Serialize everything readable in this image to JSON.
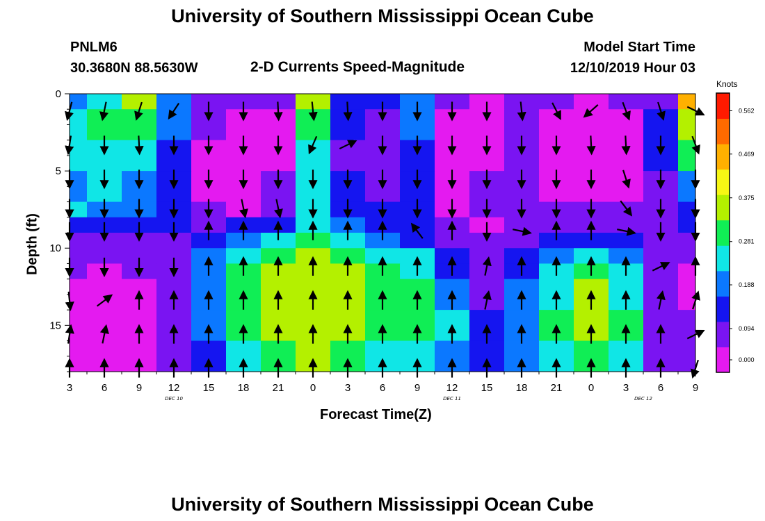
{
  "page": {
    "title": "University of Southern Mississippi Ocean Cube",
    "footer_title": "University of Southern Mississippi Ocean Cube"
  },
  "station": {
    "id": "PNLM6",
    "coords": "30.3680N 88.5630W"
  },
  "plot": {
    "title": "2-D Currents Speed-Magnitude",
    "model_start_label": "Model Start Time",
    "model_start_value": "12/10/2019 Hour 03"
  },
  "chart_data": {
    "type": "heatmap",
    "title": "2-D Currents Speed-Magnitude",
    "xlabel": "Forecast Time(Z)",
    "ylabel": "Depth (ft)",
    "x_tick_labels": [
      "3",
      "6",
      "9",
      "12",
      "15",
      "18",
      "21",
      "0",
      "3",
      "6",
      "9",
      "12",
      "15",
      "18",
      "21",
      "0",
      "3",
      "6",
      "9"
    ],
    "y_tick_labels": [
      "0",
      "5",
      "10",
      "15"
    ],
    "y_ticks": [
      0,
      5,
      10,
      15
    ],
    "ylim": [
      0,
      18
    ],
    "y_inverted": true,
    "x_hours_range": [
      3,
      57
    ],
    "day_labels": [
      {
        "label": "DEC 10",
        "hour": 12
      },
      {
        "label": "DEC 11",
        "hour": 36
      },
      {
        "label": "DEC 12",
        "hour": 52.5
      }
    ],
    "colorbar": {
      "unit": "Knots",
      "tick_labels": [
        "0.562",
        "0.469",
        "0.375",
        "0.281",
        "0.188",
        "0.094",
        "0.000"
      ],
      "ticks": [
        0.562,
        0.469,
        0.375,
        0.281,
        0.188,
        0.094,
        0.0
      ],
      "range": [
        0.0,
        0.6
      ],
      "colors": [
        "#e41af0",
        "#7a14f2",
        "#1515f0",
        "#0b78ff",
        "#10e6e6",
        "#10ee55",
        "#b4f000",
        "#f7f714",
        "#ffb000",
        "#ff6a00",
        "#ff1a00"
      ]
    },
    "speed_grid_levels": {
      "bands": [
        {
          "depth": [
            0,
            1
          ],
          "values": [
            0.2,
            0.24,
            0.34,
            0.2,
            0.09,
            0.07,
            0.1,
            0.38,
            0.12,
            0.12,
            0.2,
            0.06,
            0.04,
            0.09,
            0.06,
            0.05,
            0.06,
            0.1,
            0.45
          ]
        },
        {
          "depth": [
            1,
            3
          ],
          "values": [
            0.22,
            0.28,
            0.3,
            0.18,
            0.08,
            0.05,
            0.05,
            0.3,
            0.12,
            0.1,
            0.2,
            0.04,
            0.04,
            0.08,
            0.04,
            0.03,
            0.05,
            0.12,
            0.38
          ]
        },
        {
          "depth": [
            3,
            5
          ],
          "values": [
            0.22,
            0.24,
            0.22,
            0.16,
            0.05,
            0.04,
            0.05,
            0.25,
            0.1,
            0.08,
            0.16,
            0.03,
            0.05,
            0.07,
            0.03,
            0.02,
            0.04,
            0.13,
            0.3
          ]
        },
        {
          "depth": [
            5,
            7
          ],
          "values": [
            0.2,
            0.22,
            0.18,
            0.16,
            0.05,
            0.03,
            0.06,
            0.22,
            0.12,
            0.1,
            0.14,
            0.04,
            0.06,
            0.06,
            0.04,
            0.03,
            0.05,
            0.1,
            0.18
          ]
        },
        {
          "depth": [
            7,
            8
          ],
          "values": [
            0.22,
            0.2,
            0.18,
            0.16,
            0.06,
            0.04,
            0.08,
            0.25,
            0.14,
            0.12,
            0.12,
            0.05,
            0.06,
            0.07,
            0.06,
            0.06,
            0.08,
            0.09,
            0.15
          ]
        },
        {
          "depth": [
            8,
            9
          ],
          "values": [
            0.14,
            0.12,
            0.14,
            0.14,
            0.1,
            0.12,
            0.14,
            0.26,
            0.18,
            0.14,
            0.14,
            0.08,
            0.05,
            0.06,
            0.08,
            0.1,
            0.1,
            0.1,
            0.12
          ]
        },
        {
          "depth": [
            9,
            10
          ],
          "values": [
            0.1,
            0.1,
            0.1,
            0.1,
            0.14,
            0.2,
            0.25,
            0.32,
            0.24,
            0.18,
            0.16,
            0.1,
            0.06,
            0.1,
            0.14,
            0.15,
            0.14,
            0.1,
            0.08
          ]
        },
        {
          "depth": [
            10,
            11
          ],
          "values": [
            0.06,
            0.06,
            0.07,
            0.08,
            0.18,
            0.26,
            0.32,
            0.36,
            0.3,
            0.24,
            0.22,
            0.12,
            0.06,
            0.14,
            0.2,
            0.24,
            0.2,
            0.1,
            0.06
          ]
        },
        {
          "depth": [
            11,
            12
          ],
          "values": [
            0.06,
            0.05,
            0.06,
            0.07,
            0.2,
            0.28,
            0.34,
            0.38,
            0.34,
            0.28,
            0.26,
            0.16,
            0.08,
            0.16,
            0.24,
            0.3,
            0.24,
            0.09,
            0.05
          ]
        },
        {
          "depth": [
            12,
            14
          ],
          "values": [
            0.03,
            0.02,
            0.03,
            0.06,
            0.2,
            0.3,
            0.36,
            0.38,
            0.36,
            0.3,
            0.3,
            0.2,
            0.1,
            0.18,
            0.26,
            0.34,
            0.26,
            0.09,
            0.05
          ]
        },
        {
          "depth": [
            14,
            16
          ],
          "values": [
            0.02,
            0.02,
            0.02,
            0.06,
            0.18,
            0.3,
            0.36,
            0.38,
            0.36,
            0.3,
            0.3,
            0.22,
            0.12,
            0.2,
            0.28,
            0.36,
            0.28,
            0.1,
            0.06
          ]
        },
        {
          "depth": [
            16,
            18
          ],
          "values": [
            0.02,
            0.02,
            0.03,
            0.06,
            0.16,
            0.22,
            0.3,
            0.34,
            0.3,
            0.24,
            0.26,
            0.18,
            0.14,
            0.2,
            0.26,
            0.32,
            0.24,
            0.1,
            0.06
          ]
        }
      ]
    },
    "vector_rows": [
      {
        "depth": 1.1,
        "dir": [
          [
            -0.25,
            0.97
          ],
          [
            -0.2,
            0.98
          ],
          [
            -0.3,
            0.95
          ],
          [
            -0.55,
            0.83
          ],
          [
            0,
            1
          ],
          [
            0,
            1
          ],
          [
            0.05,
            1
          ],
          [
            0.1,
            1
          ],
          [
            0.05,
            1
          ],
          [
            0,
            1
          ],
          [
            0,
            1
          ],
          [
            0,
            1
          ],
          [
            0,
            1
          ],
          [
            0.1,
            1
          ],
          [
            0.45,
            0.89
          ],
          [
            -0.75,
            0.66
          ],
          [
            0.35,
            0.94
          ],
          [
            0.3,
            0.95
          ],
          [
            0.9,
            0.44
          ]
        ]
      },
      {
        "depth": 3.3,
        "dir": [
          [
            -0.15,
            0.99
          ],
          [
            0,
            1
          ],
          [
            0.05,
            1
          ],
          [
            0,
            1
          ],
          [
            0,
            1
          ],
          [
            0,
            1
          ],
          [
            0,
            1
          ],
          [
            -0.4,
            0.92
          ],
          [
            0.9,
            -0.44
          ],
          [
            0,
            1
          ],
          [
            0,
            1
          ],
          [
            0,
            1
          ],
          [
            0,
            1
          ],
          [
            0,
            1
          ],
          [
            0,
            1
          ],
          [
            0.05,
            1
          ],
          [
            0.05,
            1
          ],
          [
            0,
            1
          ],
          [
            0.35,
            0.94
          ]
        ]
      },
      {
        "depth": 5.5,
        "dir": [
          [
            0,
            1
          ],
          [
            0,
            1
          ],
          [
            0,
            1
          ],
          [
            0,
            1
          ],
          [
            0,
            1
          ],
          [
            0,
            1
          ],
          [
            0,
            1
          ],
          [
            0,
            1
          ],
          [
            0,
            1
          ],
          [
            0,
            1
          ],
          [
            0,
            1
          ],
          [
            0,
            1
          ],
          [
            0,
            1
          ],
          [
            0,
            1
          ],
          [
            0,
            1
          ],
          [
            0,
            1
          ],
          [
            0.3,
            0.95
          ],
          [
            0,
            1
          ],
          [
            0,
            1
          ]
        ]
      },
      {
        "depth": 7.4,
        "dir": [
          [
            0,
            1
          ],
          [
            0,
            1
          ],
          [
            0,
            1
          ],
          [
            0,
            1
          ],
          [
            0,
            1
          ],
          [
            0.2,
            0.98
          ],
          [
            0.2,
            0.98
          ],
          [
            0,
            1
          ],
          [
            0,
            1
          ],
          [
            0,
            1
          ],
          [
            0,
            1
          ],
          [
            0,
            1
          ],
          [
            0,
            1
          ],
          [
            0,
            1
          ],
          [
            0,
            1
          ],
          [
            0,
            1
          ],
          [
            0.6,
            0.8
          ],
          [
            0,
            1
          ],
          [
            0,
            1
          ]
        ]
      },
      {
        "depth": 8.9,
        "dir": [
          [
            0,
            1
          ],
          [
            0,
            1
          ],
          [
            0,
            1
          ],
          [
            0,
            1
          ],
          [
            0,
            -1
          ],
          [
            0,
            -1
          ],
          [
            0,
            -1
          ],
          [
            0,
            -1
          ],
          [
            0,
            -1
          ],
          [
            0,
            -1
          ],
          [
            -0.6,
            -0.8
          ],
          [
            0,
            -1
          ],
          [
            0,
            1
          ],
          [
            0.98,
            0.2
          ],
          [
            0,
            -1
          ],
          [
            0,
            -1
          ],
          [
            0.98,
            0.2
          ],
          [
            0,
            1
          ],
          [
            0,
            1
          ]
        ]
      },
      {
        "depth": 11.2,
        "dir": [
          [
            0,
            1
          ],
          [
            0,
            1
          ],
          [
            0,
            1
          ],
          [
            0,
            1
          ],
          [
            0,
            -1
          ],
          [
            0,
            -1
          ],
          [
            0,
            -1
          ],
          [
            0,
            -1
          ],
          [
            0,
            -1
          ],
          [
            0,
            -1
          ],
          [
            0,
            -1
          ],
          [
            0,
            -1
          ],
          [
            0.2,
            -0.98
          ],
          [
            0,
            -1
          ],
          [
            0,
            -1
          ],
          [
            0,
            -1
          ],
          [
            0,
            -1
          ],
          [
            0.9,
            -0.44
          ],
          [
            0,
            -1
          ]
        ]
      },
      {
        "depth": 13.4,
        "dir": [
          [
            0.1,
            0.99
          ],
          [
            0.8,
            -0.6
          ],
          [
            0,
            -1
          ],
          [
            0,
            -1
          ],
          [
            0,
            -1
          ],
          [
            0,
            -1
          ],
          [
            0,
            -1
          ],
          [
            0,
            -1
          ],
          [
            0,
            -1
          ],
          [
            0,
            -1
          ],
          [
            0,
            -1
          ],
          [
            0,
            -1
          ],
          [
            0.2,
            -0.98
          ],
          [
            0,
            -1
          ],
          [
            0,
            -1
          ],
          [
            0,
            -1
          ],
          [
            0,
            -1
          ],
          [
            0.2,
            -0.98
          ],
          [
            0.3,
            -0.95
          ]
        ]
      },
      {
        "depth": 15.6,
        "dir": [
          [
            0.15,
            -0.99
          ],
          [
            0.2,
            -0.98
          ],
          [
            0,
            -1
          ],
          [
            0,
            -1
          ],
          [
            0,
            -1
          ],
          [
            0,
            -1
          ],
          [
            0,
            -1
          ],
          [
            0,
            -1
          ],
          [
            0,
            -1
          ],
          [
            0,
            -1
          ],
          [
            0,
            -1
          ],
          [
            0,
            -1
          ],
          [
            0,
            -1
          ],
          [
            0,
            -1
          ],
          [
            0,
            -1
          ],
          [
            0,
            -1
          ],
          [
            0,
            -1
          ],
          [
            0,
            -1
          ],
          [
            0.9,
            -0.44
          ]
        ]
      },
      {
        "depth": 17.8,
        "dir": [
          [
            0,
            -1
          ],
          [
            0,
            -1
          ],
          [
            0,
            -1
          ],
          [
            0,
            -1
          ],
          [
            0,
            -1
          ],
          [
            0,
            -1
          ],
          [
            0,
            -1
          ],
          [
            0,
            -1
          ],
          [
            0,
            -1
          ],
          [
            0,
            -1
          ],
          [
            0,
            -1
          ],
          [
            0,
            -1
          ],
          [
            0,
            -1
          ],
          [
            0,
            -1
          ],
          [
            0,
            -1
          ],
          [
            0,
            -1
          ],
          [
            0,
            -1
          ],
          [
            0,
            -1
          ],
          [
            -0.3,
            0.95
          ]
        ]
      }
    ]
  }
}
